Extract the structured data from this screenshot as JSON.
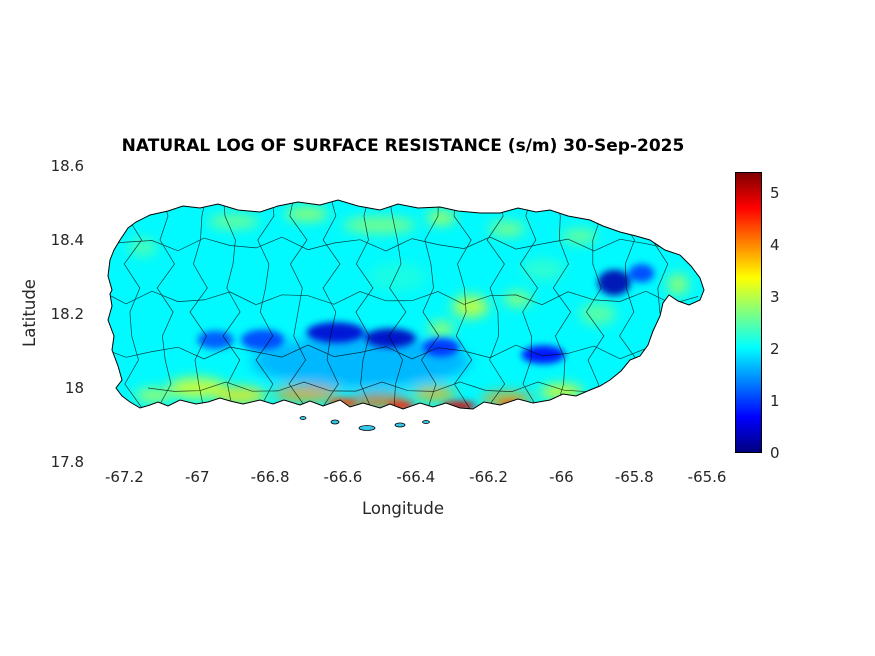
{
  "chart_data": {
    "type": "heatmap",
    "title": "NATURAL LOG OF SURFACE RESISTANCE (s/m) 30-Sep-2025",
    "xlabel": "Longitude",
    "ylabel": "Latitude",
    "region": "Puerto Rico with municipality boundaries",
    "xlim": [
      -67.3,
      -65.57
    ],
    "ylim": [
      17.8,
      18.6
    ],
    "xticks": [
      "-67.2",
      "-67",
      "-66.8",
      "-66.6",
      "-66.4",
      "-66.2",
      "-66",
      "-65.8",
      "-65.6"
    ],
    "yticks": [
      "17.8",
      "18",
      "18.2",
      "18.4",
      "18.6"
    ],
    "colorbar": {
      "min": 0,
      "max": 5.4,
      "ticks": [
        "0",
        "1",
        "2",
        "3",
        "4",
        "5"
      ],
      "colormap": "jet",
      "position": "right"
    },
    "grid": false,
    "legend": "none",
    "base_value": 2.0,
    "features": [
      {
        "lon": -66.9,
        "lat": 18.45,
        "value": 2.7,
        "rx": 0.07,
        "ry": 0.02,
        "layer": "soft"
      },
      {
        "lon": -66.7,
        "lat": 18.47,
        "value": 3.0,
        "rx": 0.06,
        "ry": 0.018,
        "layer": "soft"
      },
      {
        "lon": -66.5,
        "lat": 18.44,
        "value": 2.8,
        "rx": 0.1,
        "ry": 0.022,
        "layer": "soft"
      },
      {
        "lon": -66.33,
        "lat": 18.46,
        "value": 3.1,
        "rx": 0.04,
        "ry": 0.018,
        "layer": "soft"
      },
      {
        "lon": -66.15,
        "lat": 18.43,
        "value": 2.8,
        "rx": 0.05,
        "ry": 0.02,
        "layer": "soft"
      },
      {
        "lon": -65.95,
        "lat": 18.41,
        "value": 2.7,
        "rx": 0.05,
        "ry": 0.02,
        "layer": "soft"
      },
      {
        "lon": -66.55,
        "lat": 18.07,
        "value": 1.3,
        "rx": 0.3,
        "ry": 0.07,
        "layer": "soft",
        "opacity": 0.5
      },
      {
        "lon": -66.25,
        "lat": 18.22,
        "value": 3.2,
        "rx": 0.05,
        "ry": 0.03,
        "layer": "soft"
      },
      {
        "lon": -66.33,
        "lat": 18.16,
        "value": 3.0,
        "rx": 0.035,
        "ry": 0.02,
        "layer": "soft"
      },
      {
        "lon": -66.12,
        "lat": 18.24,
        "value": 2.9,
        "rx": 0.04,
        "ry": 0.02,
        "layer": "soft"
      },
      {
        "lon": -67.0,
        "lat": 18.0,
        "value": 3.3,
        "rx": 0.08,
        "ry": 0.028,
        "layer": "soft"
      },
      {
        "lon": -67.12,
        "lat": 17.98,
        "value": 3.0,
        "rx": 0.05,
        "ry": 0.02,
        "layer": "soft"
      },
      {
        "lon": -66.88,
        "lat": 17.98,
        "value": 3.5,
        "rx": 0.07,
        "ry": 0.024,
        "layer": "soft"
      },
      {
        "lon": -66.7,
        "lat": 17.985,
        "value": 3.9,
        "rx": 0.09,
        "ry": 0.022,
        "layer": "soft"
      },
      {
        "lon": -66.5,
        "lat": 17.965,
        "value": 4.2,
        "rx": 0.08,
        "ry": 0.02,
        "layer": "soft"
      },
      {
        "lon": -66.35,
        "lat": 17.985,
        "value": 3.8,
        "rx": 0.06,
        "ry": 0.02,
        "layer": "soft"
      },
      {
        "lon": -66.15,
        "lat": 17.97,
        "value": 3.9,
        "rx": 0.07,
        "ry": 0.02,
        "layer": "soft"
      },
      {
        "lon": -66.0,
        "lat": 17.99,
        "value": 3.4,
        "rx": 0.06,
        "ry": 0.02,
        "layer": "soft"
      },
      {
        "lon": -65.9,
        "lat": 18.2,
        "value": 2.6,
        "rx": 0.05,
        "ry": 0.03,
        "layer": "soft"
      },
      {
        "lon": -67.15,
        "lat": 18.38,
        "value": 2.5,
        "rx": 0.04,
        "ry": 0.025,
        "layer": "soft"
      },
      {
        "lon": -66.05,
        "lat": 18.32,
        "value": 2.4,
        "rx": 0.06,
        "ry": 0.03,
        "layer": "soft",
        "opacity": 0.6
      },
      {
        "lon": -65.68,
        "lat": 18.28,
        "value": 2.9,
        "rx": 0.03,
        "ry": 0.03,
        "layer": "soft"
      },
      {
        "lon": -66.45,
        "lat": 18.3,
        "value": 2.3,
        "rx": 0.08,
        "ry": 0.04,
        "layer": "soft",
        "opacity": 0.5
      },
      {
        "lon": -66.95,
        "lat": 18.13,
        "value": 1.1,
        "rx": 0.05,
        "ry": 0.025,
        "layer": "core"
      },
      {
        "lon": -66.82,
        "lat": 18.13,
        "value": 1.0,
        "rx": 0.06,
        "ry": 0.028,
        "layer": "core"
      },
      {
        "lon": -66.62,
        "lat": 18.15,
        "value": 0.45,
        "rx": 0.08,
        "ry": 0.028,
        "layer": "core"
      },
      {
        "lon": -66.47,
        "lat": 18.135,
        "value": 0.35,
        "rx": 0.07,
        "ry": 0.026,
        "layer": "core"
      },
      {
        "lon": -66.33,
        "lat": 18.11,
        "value": 0.9,
        "rx": 0.05,
        "ry": 0.025,
        "layer": "core"
      },
      {
        "lon": -66.05,
        "lat": 18.09,
        "value": 0.7,
        "rx": 0.06,
        "ry": 0.025,
        "layer": "core"
      },
      {
        "lon": -65.855,
        "lat": 18.285,
        "value": 0.25,
        "rx": 0.045,
        "ry": 0.035,
        "layer": "core"
      },
      {
        "lon": -65.78,
        "lat": 18.31,
        "value": 1.0,
        "rx": 0.035,
        "ry": 0.025,
        "layer": "core"
      },
      {
        "lon": -66.28,
        "lat": 17.952,
        "value": 4.9,
        "rx": 0.045,
        "ry": 0.013,
        "layer": "core"
      },
      {
        "lon": -66.44,
        "lat": 17.952,
        "value": 4.6,
        "rx": 0.035,
        "ry": 0.012,
        "layer": "core"
      },
      {
        "lon": -66.6,
        "lat": 17.96,
        "value": 4.4,
        "rx": 0.04,
        "ry": 0.013,
        "layer": "core"
      },
      {
        "lon": -66.14,
        "lat": 17.955,
        "value": 4.3,
        "rx": 0.03,
        "ry": 0.012,
        "layer": "core"
      }
    ]
  }
}
